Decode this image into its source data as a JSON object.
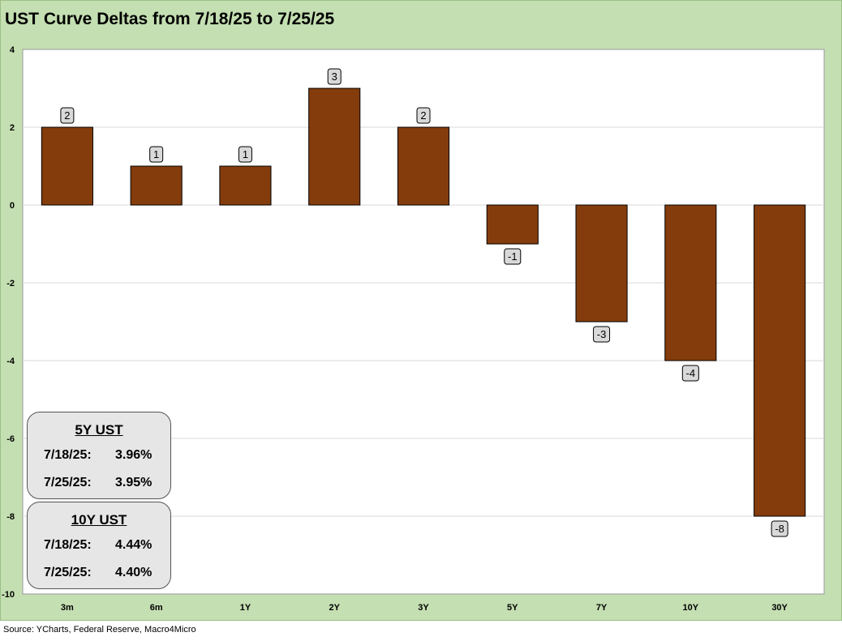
{
  "title": "UST Curve Deltas from 7/18/25 to 7/25/25",
  "source": "Source: YCharts, Federal Reserve, Macro4Micro",
  "colors": {
    "bar": "#843c0c",
    "frame": "#c4dfb2",
    "label_box": "#d9d9d9",
    "gridline": "#d9d9d9"
  },
  "chart_data": {
    "type": "bar",
    "title": "UST Curve Deltas from 7/18/25 to 7/25/25",
    "xlabel": "",
    "ylabel": "",
    "categories": [
      "3m",
      "6m",
      "1Y",
      "2Y",
      "3Y",
      "5Y",
      "7Y",
      "10Y",
      "30Y"
    ],
    "values": [
      2,
      1,
      1,
      3,
      2,
      -1,
      -3,
      -4,
      -8
    ],
    "data_labels": [
      "2",
      "1",
      "1",
      "3",
      "2",
      "-1",
      "-3",
      "-4",
      "-8"
    ],
    "ylim": [
      -10,
      4
    ],
    "yticks": [
      4,
      2,
      0,
      -2,
      -4,
      -6,
      -8,
      -10
    ],
    "grid": true,
    "legend": "none"
  },
  "info_boxes": [
    {
      "title": "5Y UST",
      "rows": [
        {
          "date": "7/18/25:",
          "value": "3.96%"
        },
        {
          "date": "7/25/25:",
          "value": "3.95%"
        }
      ]
    },
    {
      "title": "10Y UST",
      "rows": [
        {
          "date": "7/18/25:",
          "value": "4.44%"
        },
        {
          "date": "7/25/25:",
          "value": "4.40%"
        }
      ]
    }
  ]
}
